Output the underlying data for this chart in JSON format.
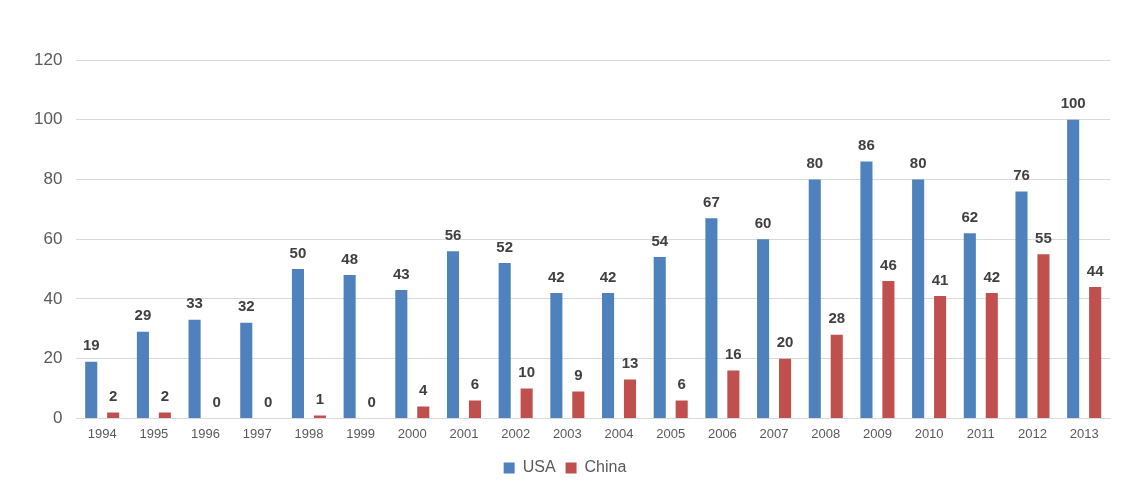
{
  "chart_data": {
    "type": "bar",
    "categories": [
      "1994",
      "1995",
      "1996",
      "1997",
      "1998",
      "1999",
      "2000",
      "2001",
      "2002",
      "2003",
      "2004",
      "2005",
      "2006",
      "2007",
      "2008",
      "2009",
      "2010",
      "2011",
      "2012",
      "2013"
    ],
    "series": [
      {
        "name": "USA",
        "color": "#4f81bd",
        "values": [
          19,
          29,
          33,
          32,
          50,
          48,
          43,
          56,
          52,
          42,
          42,
          54,
          67,
          60,
          80,
          86,
          80,
          62,
          76,
          100
        ]
      },
      {
        "name": "China",
        "color": "#c0504d",
        "values": [
          2,
          2,
          0,
          0,
          1,
          0,
          4,
          6,
          10,
          9,
          13,
          6,
          16,
          20,
          28,
          46,
          41,
          42,
          55,
          44
        ]
      }
    ],
    "ylim": [
      0,
      120
    ],
    "yticks": [
      0,
      20,
      40,
      60,
      80,
      100,
      120
    ],
    "grid": "y",
    "legend": "bottom",
    "data_labels": true
  }
}
